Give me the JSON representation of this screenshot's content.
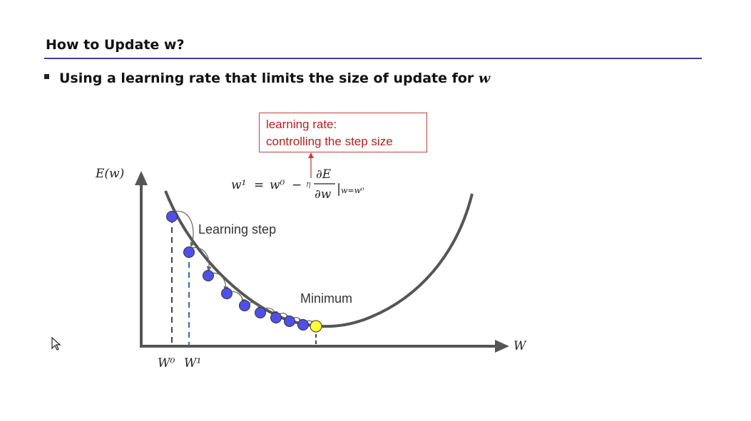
{
  "slide": {
    "title": "How to Update w?",
    "bullet_text": "Using a learning rate that limits the size of update for ",
    "bullet_var": "w"
  },
  "annotation": {
    "line1": "learning rate:",
    "line2": "controlling the step size",
    "color": "#b81f1f"
  },
  "formula": {
    "lhs": "w¹",
    "equals": "=",
    "w0": "w⁰",
    "minus": "−",
    "eta": "η",
    "numerator": "∂E",
    "denominator": "∂w",
    "eval_bar": "|",
    "eval_at": "w=w⁰"
  },
  "diagram": {
    "y_axis_label": "E(w)",
    "x_axis_label": "W",
    "learning_step_label": "Learning step",
    "minimum_label": "Minimum",
    "w0_label": "W⁰",
    "w1_label": "W¹",
    "step_point_color": "#5050e8",
    "minimum_point_color": "#ffff33",
    "curve_color": "#555555"
  },
  "icons": {
    "cursor": "mouse-pointer-icon",
    "bullet": "square-bullet-icon"
  }
}
